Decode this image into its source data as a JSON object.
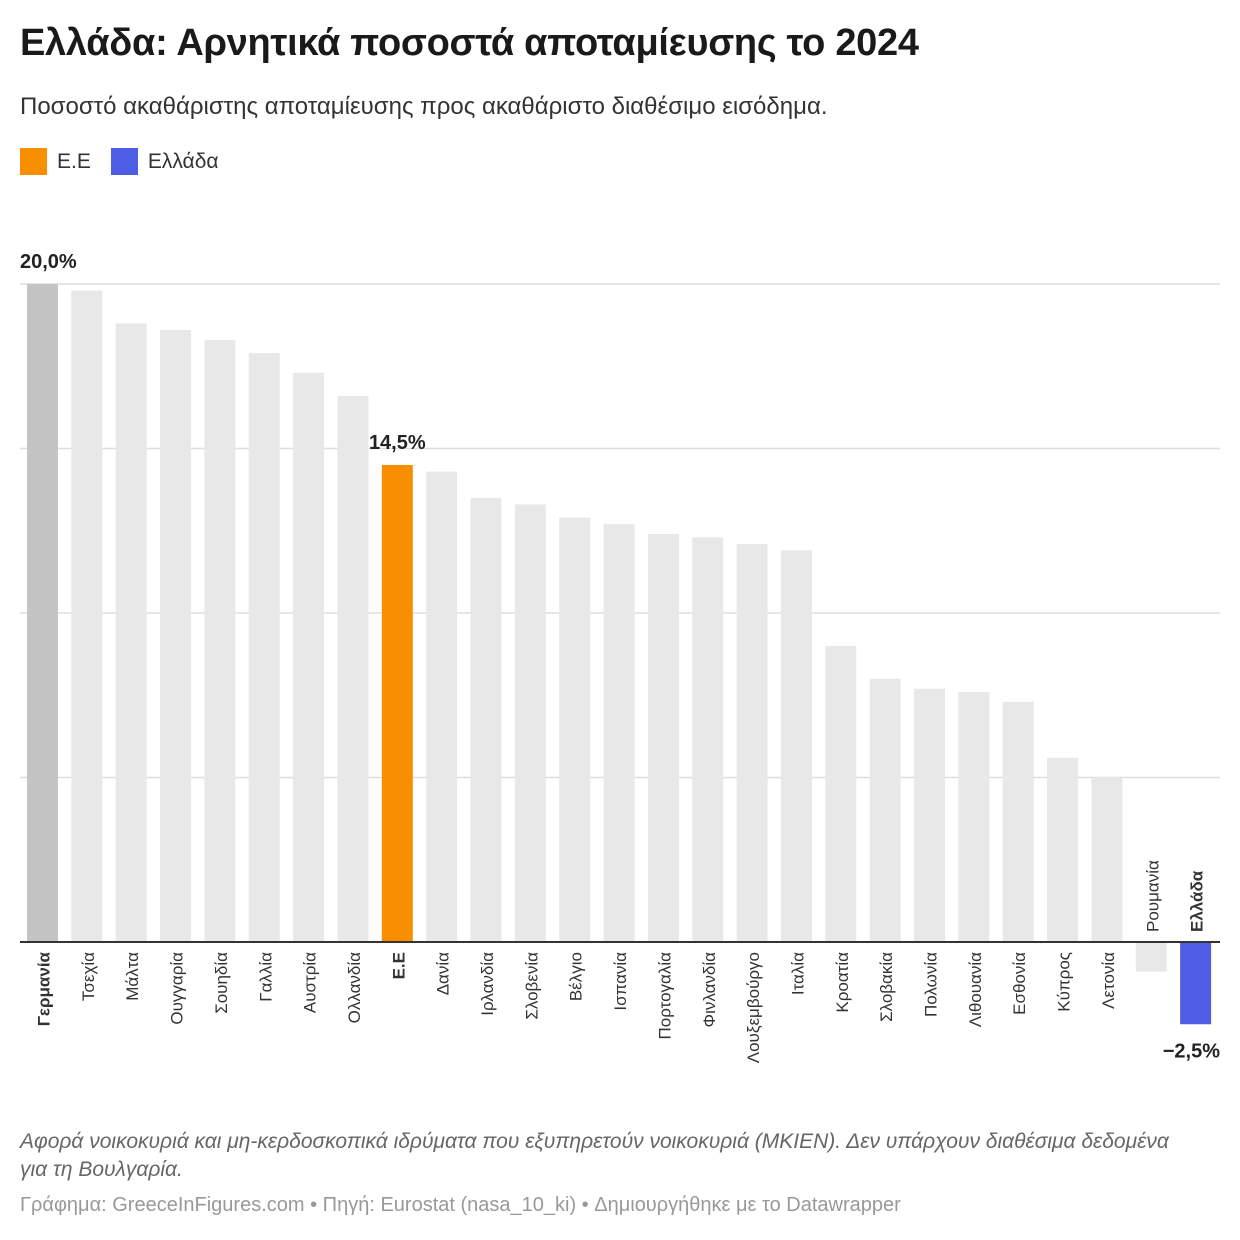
{
  "header": {
    "title": "Ελλάδα: Αρνητικά ποσοστά αποταμίευσης το 2024",
    "subtitle": "Ποσοστό ακαθάριστης αποταμίευσης προς ακαθάριστο διαθέσιμο εισόδημα."
  },
  "legend": [
    {
      "label": "Ε.Ε",
      "color": "#f78f00"
    },
    {
      "label": "Ελλάδα",
      "color": "#4f5ce4"
    }
  ],
  "colors": {
    "default_bar": "#e8e8e8",
    "top_bar": "#c4c4c4",
    "eu_bar": "#f78f00",
    "greece_bar": "#4f5ce4",
    "grid": "#dedede",
    "baseline": "#333333"
  },
  "chart_data": {
    "type": "bar",
    "title": "Ελλάδα: Αρνητικά ποσοστά αποταμίευσης το 2024",
    "xlabel": "",
    "ylabel": "",
    "ylim": [
      -3,
      20
    ],
    "grid": true,
    "gridlines": [
      0,
      5,
      10,
      15,
      20
    ],
    "categories": [
      "Γερμανία",
      "Τσεχία",
      "Μάλτα",
      "Ουγγαρία",
      "Σουηδία",
      "Γαλλία",
      "Αυστρία",
      "Ολλανδία",
      "Ε.Ε",
      "Δανία",
      "Ιρλανδία",
      "Σλοβενία",
      "Βέλγιο",
      "Ισπανία",
      "Πορτογαλία",
      "Φινλανδία",
      "Λουξεμβούργο",
      "Ιταλία",
      "Κροατία",
      "Σλοβακία",
      "Πολωνία",
      "Λιθουανία",
      "Εσθονία",
      "Κύπρος",
      "Λετονία",
      "Ρουμανία",
      "Ελλάδα"
    ],
    "values": [
      20.0,
      19.8,
      18.8,
      18.6,
      18.3,
      17.9,
      17.3,
      16.6,
      14.5,
      14.3,
      13.5,
      13.3,
      12.9,
      12.7,
      12.4,
      12.3,
      12.1,
      11.9,
      9.0,
      8.0,
      7.7,
      7.6,
      7.3,
      5.6,
      5.0,
      -0.9,
      -2.5
    ],
    "highlight": {
      "Γερμανία": "top",
      "Ε.Ε": "eu",
      "Ελλάδα": "greece"
    },
    "bold_labels": [
      "Γερμανία",
      "Ε.Ε",
      "Ελλάδα"
    ],
    "value_labels": [
      {
        "category": "Γερμανία",
        "text": "20,0%"
      },
      {
        "category": "Ε.Ε",
        "text": "14,5%"
      },
      {
        "category": "Ελλάδα",
        "text": "−2,5%"
      }
    ]
  },
  "footer": {
    "note": "Αφορά νοικοκυριά και μη-κερδοσκοπικά ιδρύματα που εξυπηρετούν νοικοκυριά (ΜΚΙΕΝ). Δεν υπάρχουν διαθέσιμα δεδομένα για τη Βουλγαρία.",
    "credit": "Γράφημα: GreeceInFigures.com • Πηγή: Eurostat (nasa_10_ki) • Δημιουργήθηκε με το Datawrapper"
  }
}
